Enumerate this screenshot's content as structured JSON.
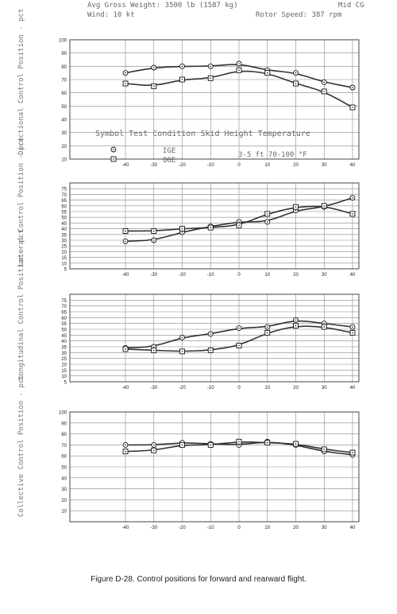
{
  "header": {
    "line1_left": "Avg Gross Weight: 3500 lb (1587 kg)",
    "line1_right": "Mid CG",
    "line2_left": "Wind: 10 kt",
    "line2_right": "Rotor Speed: 387 rpm"
  },
  "legend": {
    "title": "Symbol  Test Condition  Skid Height  Temperature",
    "item1": "IGE",
    "item2": "OGE",
    "row2": "3-5 ft     70-100 °F"
  },
  "caption": "Figure D-28.  Control positions for forward and rearward flight.",
  "chart_data": [
    {
      "type": "line",
      "ylabel": "Directional Control Position - pct",
      "ylim": [
        10,
        100
      ],
      "xlim": [
        -40,
        40
      ],
      "x_ticks": [
        -40,
        -30,
        -20,
        -10,
        0,
        10,
        20,
        30,
        40
      ],
      "y_ticks": [
        10,
        20,
        30,
        40,
        50,
        60,
        70,
        80,
        90,
        100
      ],
      "grid": true,
      "series": [
        {
          "name": "IGE",
          "marker": "circle",
          "x": [
            -40,
            -30,
            -20,
            -10,
            0,
            10,
            20,
            30,
            40
          ],
          "y": [
            75,
            79,
            80,
            80,
            82,
            77,
            75,
            68,
            64
          ]
        },
        {
          "name": "OGE",
          "marker": "square",
          "x": [
            -40,
            -30,
            -20,
            -10,
            0,
            10,
            20,
            30,
            40
          ],
          "y": [
            67,
            65,
            70,
            71,
            77,
            75,
            67,
            61,
            49
          ]
        }
      ]
    },
    {
      "type": "line",
      "ylabel": "Lateral Control Position - pct",
      "ylim": [
        5,
        80
      ],
      "xlim": [
        -40,
        40
      ],
      "x_ticks": [
        -40,
        -30,
        -20,
        -10,
        0,
        10,
        20,
        30,
        40
      ],
      "y_ticks": [
        5,
        10,
        15,
        20,
        25,
        30,
        35,
        40,
        45,
        50,
        55,
        60,
        65,
        70,
        75
      ],
      "grid": true,
      "series": [
        {
          "name": "IGE",
          "marker": "circle",
          "x": [
            -40,
            -30,
            -20,
            -10,
            0,
            10,
            20,
            30,
            40
          ],
          "y": [
            29,
            30,
            37,
            42,
            46,
            46,
            56,
            59,
            67
          ]
        },
        {
          "name": "OGE",
          "marker": "square",
          "x": [
            -40,
            -30,
            -20,
            -10,
            0,
            10,
            20,
            30,
            40
          ],
          "y": [
            38,
            38,
            40,
            41,
            43,
            53,
            59,
            60,
            53
          ]
        }
      ]
    },
    {
      "type": "line",
      "ylabel": "Longitudinal Control Position - pct",
      "ylim": [
        5,
        80
      ],
      "xlim": [
        -40,
        40
      ],
      "x_ticks": [
        -40,
        -30,
        -20,
        -10,
        0,
        10,
        20,
        30,
        40
      ],
      "y_ticks": [
        5,
        10,
        15,
        20,
        25,
        30,
        35,
        40,
        45,
        50,
        55,
        60,
        65,
        70,
        75
      ],
      "grid": true,
      "series": [
        {
          "name": "IGE",
          "marker": "circle",
          "x": [
            -40,
            -30,
            -20,
            -10,
            0,
            10,
            20,
            30,
            40
          ],
          "y": [
            34,
            35,
            43,
            46,
            51,
            52,
            58,
            55,
            52
          ]
        },
        {
          "name": "OGE",
          "marker": "square",
          "x": [
            -40,
            -30,
            -20,
            -10,
            0,
            10,
            20,
            30,
            40
          ],
          "y": [
            33,
            32,
            31,
            32,
            36,
            47,
            53,
            52,
            47
          ]
        }
      ]
    },
    {
      "type": "line",
      "ylabel": "Collective Control Position - pct",
      "ylim": [
        0,
        100
      ],
      "xlim": [
        -40,
        40
      ],
      "x_ticks": [
        -40,
        -30,
        -20,
        -10,
        0,
        10,
        20,
        30,
        40
      ],
      "y_ticks": [
        10,
        20,
        30,
        40,
        50,
        60,
        70,
        80,
        90,
        100
      ],
      "grid": true,
      "series": [
        {
          "name": "IGE",
          "marker": "circle",
          "x": [
            -40,
            -30,
            -20,
            -10,
            0,
            10,
            20,
            30,
            40
          ],
          "y": [
            70,
            70,
            72,
            71,
            70,
            73,
            70,
            64,
            61
          ]
        },
        {
          "name": "OGE",
          "marker": "square",
          "x": [
            -40,
            -30,
            -20,
            -10,
            0,
            10,
            20,
            30,
            40
          ],
          "y": [
            64,
            65,
            70,
            70,
            73,
            72,
            71,
            66,
            63
          ]
        }
      ]
    }
  ]
}
